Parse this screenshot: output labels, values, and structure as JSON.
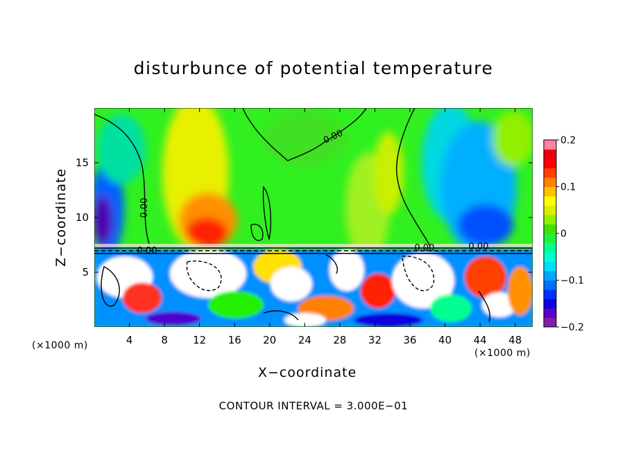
{
  "chart_data": {
    "type": "heatmap",
    "title": "disturbunce of potential temperature",
    "xlabel": "X−coordinate",
    "ylabel": "Z−coordinate",
    "x_unit_left": "(×1000 m)",
    "x_unit_right": "(×1000 m)",
    "xlim": [
      0,
      50
    ],
    "ylim": [
      0,
      20
    ],
    "xticks": [
      4,
      8,
      12,
      16,
      20,
      24,
      28,
      32,
      36,
      40,
      44,
      48
    ],
    "xtick_labels": [
      "4",
      "8",
      "12",
      "16",
      "20",
      "24",
      "28",
      "32",
      "36",
      "40",
      "44",
      "48"
    ],
    "yticks": [
      5,
      10,
      15
    ],
    "ytick_labels": [
      "5",
      "10",
      "15"
    ],
    "colorbar": {
      "range": [
        -0.2,
        0.2
      ],
      "ticks": [
        0.2,
        0.1,
        0,
        -0.1,
        -0.2
      ],
      "tick_labels": [
        "0.2",
        "0.1",
        "0",
        "−0.1",
        "−0.2"
      ],
      "colors": [
        "#7f1fa6",
        "#5a00c8",
        "#1000e0",
        "#0030ff",
        "#0070ff",
        "#00a8ff",
        "#00dcff",
        "#00ffd0",
        "#00ff90",
        "#20f040",
        "#40e000",
        "#90f000",
        "#d8f000",
        "#ffff00",
        "#ffc000",
        "#ff8000",
        "#ff4000",
        "#ff0000",
        "#e80010",
        "#ff80a0"
      ]
    },
    "contour_labels": [
      "0.00",
      "0.00",
      "0.00",
      "0.00",
      "0.00"
    ],
    "contour_interval_text": "CONTOUR INTERVAL = 3.000E−01"
  }
}
